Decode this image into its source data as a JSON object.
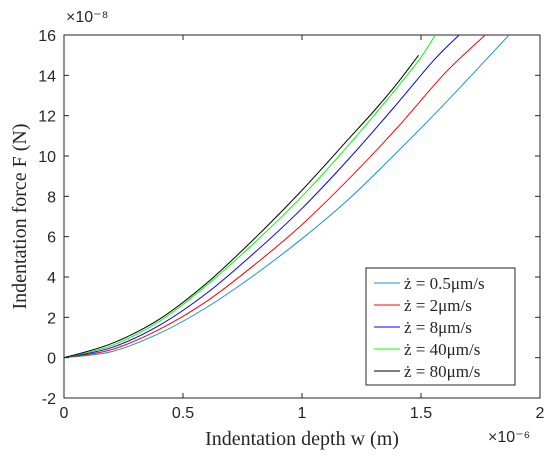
{
  "chart_data": {
    "type": "line",
    "xlabel": "Indentation depth w (m)",
    "ylabel": "Indentation force F (N)",
    "x_exponent": "×10⁻⁶",
    "y_exponent": "×10⁻⁸",
    "xlim": [
      0,
      2e-06
    ],
    "ylim": [
      -2e-08,
      1.6e-07
    ],
    "x_ticks": [
      0,
      0.5,
      1,
      1.5,
      2
    ],
    "x_tick_labels": [
      "0",
      "0.5",
      "1",
      "1.5",
      "2"
    ],
    "y_ticks": [
      -2,
      0,
      2,
      4,
      6,
      8,
      10,
      12,
      14,
      16
    ],
    "y_tick_labels": [
      "-2",
      "0",
      "2",
      "4",
      "6",
      "8",
      "10",
      "12",
      "14",
      "16"
    ],
    "grid": false,
    "legend_position": "bottom-right",
    "series": [
      {
        "name": "ż = 0.5μm/s",
        "color": "#1f8fd6",
        "x": [
          0,
          2e-07,
          4e-07,
          6e-07,
          8e-07,
          1e-06,
          1.2e-06,
          1.4e-06,
          1.6e-06,
          1.87e-06
        ],
        "y": [
          0,
          3e-09,
          1.2e-08,
          2.5e-08,
          4.1e-08,
          5.9e-08,
          7.9e-08,
          1.02e-07,
          1.26e-07,
          1.6e-07
        ]
      },
      {
        "name": "ż = 2μm/s",
        "color": "#ff0000",
        "x": [
          0,
          2e-07,
          4e-07,
          6e-07,
          8e-07,
          1e-06,
          1.2e-06,
          1.4e-06,
          1.6e-06,
          1.77e-06
        ],
        "y": [
          0,
          4e-09,
          1.4e-08,
          2.8e-08,
          4.6e-08,
          6.6e-08,
          8.9e-08,
          1.14e-07,
          1.41e-07,
          1.6e-07
        ]
      },
      {
        "name": "ż = 8μm/s",
        "color": "#0000ff",
        "x": [
          0,
          2e-07,
          4e-07,
          6e-07,
          8e-07,
          1e-06,
          1.2e-06,
          1.4e-06,
          1.55e-06,
          1.66e-06
        ],
        "y": [
          0,
          5e-09,
          1.6e-08,
          3.2e-08,
          5.2e-08,
          7.4e-08,
          9.9e-08,
          1.26e-07,
          1.47e-07,
          1.6e-07
        ]
      },
      {
        "name": "ż = 40μm/s",
        "color": "#00ff00",
        "x": [
          0,
          2e-07,
          4e-07,
          6e-07,
          8e-07,
          1e-06,
          1.2e-06,
          1.4e-06,
          1.5e-06,
          1.56e-06
        ],
        "y": [
          0,
          6e-09,
          1.8e-08,
          3.6e-08,
          5.7e-08,
          8e-08,
          1.06e-07,
          1.34e-07,
          1.49e-07,
          1.6e-07
        ]
      },
      {
        "name": "ż = 80μm/s",
        "color": "#000000",
        "x": [
          0,
          2e-07,
          4e-07,
          6e-07,
          8e-07,
          1e-06,
          1.2e-06,
          1.3e-06,
          1.4e-06,
          1.49e-06
        ],
        "y": [
          0,
          7e-09,
          1.9e-08,
          3.7e-08,
          5.9e-08,
          8.3e-08,
          1.09e-07,
          1.22e-07,
          1.36e-07,
          1.5e-07
        ]
      }
    ]
  }
}
